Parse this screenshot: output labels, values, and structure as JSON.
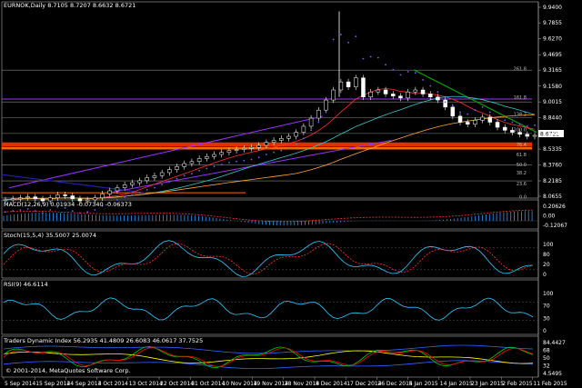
{
  "main_title": "EURNOK,Daily  8.7105 8.7207 8.6632 8.6721",
  "price_ticks": [
    "9.9400",
    "9.7855",
    "9.6270",
    "9.4695",
    "9.3165",
    "9.1580",
    "9.0015",
    "8.8440",
    "8.6885",
    "8.5335",
    "8.3760",
    "8.2185",
    "8.0655"
  ],
  "current_price": "8.6721",
  "fib_labels": [
    "261.8",
    "161.8",
    "138.2",
    "100.0",
    "76.4",
    "61.8",
    "50.0",
    "38.2",
    "23.6",
    "0.0"
  ],
  "macd_title": "MACD(12,26,9) 0.01934 -0.07340 -0.06373",
  "macd_ticks": [
    "0.20626",
    "0.00",
    "-0.12067"
  ],
  "stoch_title": "Stoch(15,5,4) 35.5007 25.0074",
  "stoch_ticks": [
    "100",
    "80",
    "20",
    "0"
  ],
  "rsi_title": "RSI(9) 46.6114",
  "rsi_ticks": [
    "100",
    "70",
    "30",
    "0"
  ],
  "tdi_title": "Traders Dynamic Index 56.2935 41.4809 26.6083 46.0617 37.7525",
  "tdi_ticks": [
    "84.4427",
    "68",
    "50",
    "32",
    "4.5495"
  ],
  "copyright": "© 2001-2014, MetaQuotes Software Corp.",
  "dates": [
    "5 Sep 2014",
    "15 Sep 2014",
    "24 Sep 2014",
    "3 Oct 2014",
    "13 Oct 2014",
    "22 Oct 2014",
    "31 Oct 2014",
    "10 Nov 2014",
    "19 Nov 2014",
    "28 Nov 2014",
    "8 Dec 2014",
    "17 Dec 2014",
    "26 Dec 2014",
    "5 Jan 2015",
    "14 Jan 2015",
    "23 Jan 2015",
    "2 Feb 2015",
    "11 Feb 2015"
  ],
  "chart_data": {
    "type": "line",
    "symbol": "EURNOK",
    "timeframe": "Daily",
    "ohlc_last": {
      "open": 8.7105,
      "high": 8.7207,
      "low": 8.6632,
      "close": 8.6721
    },
    "close_series": [
      8.03,
      8.04,
      8.05,
      8.06,
      8.04,
      8.02,
      8.05,
      8.08,
      8.07,
      8.04,
      8.02,
      8.03,
      8.05,
      8.09,
      8.12,
      8.15,
      8.18,
      8.2,
      8.22,
      8.25,
      8.27,
      8.3,
      8.33,
      8.36,
      8.39,
      8.41,
      8.44,
      8.46,
      8.48,
      8.5,
      8.52,
      8.53,
      8.54,
      8.55,
      8.57,
      8.6,
      8.62,
      8.64,
      8.66,
      8.7,
      8.76,
      8.84,
      8.92,
      9.02,
      9.12,
      9.2,
      9.15,
      9.24,
      9.05,
      9.1,
      9.12,
      9.08,
      9.06,
      9.04,
      9.1,
      9.12,
      9.08,
      9.05,
      9.02,
      8.95,
      8.86,
      8.8,
      8.78,
      8.82,
      8.85,
      8.8,
      8.75,
      8.72,
      8.7,
      8.68,
      8.66,
      8.67
    ],
    "ylim": [
      8.0655,
      9.94
    ],
    "grid": true
  },
  "colors": {
    "background": "#000000",
    "candle": "#ffffff",
    "trend_green": "#00a000",
    "channel_purple": "#9933ff",
    "zone_red": "#e03000",
    "zone_orange": "#ff6600",
    "sar_blue": "#6666ff",
    "macd_hist": "#3399ff",
    "macd_signal": "#ff3333",
    "stoch_main": "#33ccff",
    "stoch_signal": "#ff3333",
    "rsi": "#33ccff",
    "tdi_yellow": "#ffff00",
    "tdi_green": "#00cc00",
    "tdi_red": "#ff0000",
    "tdi_blue": "#3366ff"
  }
}
